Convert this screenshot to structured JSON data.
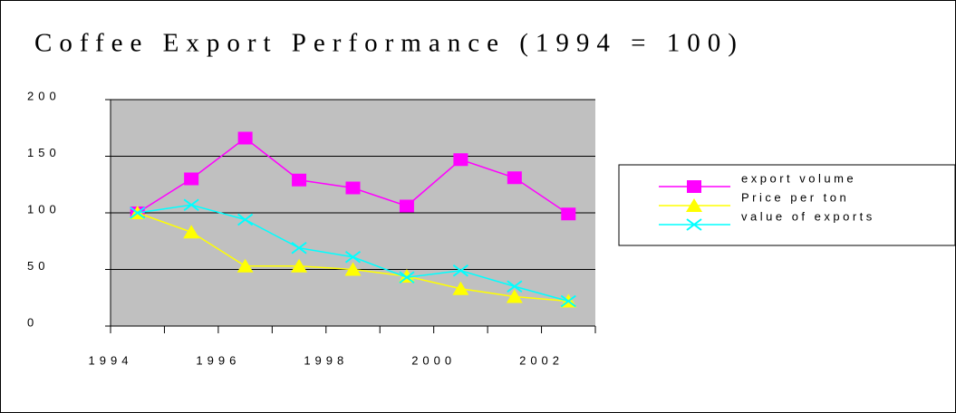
{
  "chart_data": {
    "type": "line",
    "title": "Coffee Export Performance (1994 = 100)",
    "categories": [
      "1994",
      null,
      "1996",
      null,
      "1998",
      null,
      "2000",
      null,
      "2002"
    ],
    "series": [
      {
        "name": "export volume",
        "color": "#ff00ff",
        "marker": "square",
        "values": [
          100,
          130,
          166,
          129,
          122,
          106,
          147,
          131,
          99
        ]
      },
      {
        "name": "Price per ton",
        "color": "#ffff00",
        "marker": "triangle",
        "values": [
          100,
          83,
          53,
          53,
          50,
          44,
          33,
          26,
          22
        ]
      },
      {
        "name": "value of exports",
        "color": "#00ffff",
        "marker": "x",
        "values": [
          100,
          107,
          94,
          69,
          61,
          43,
          49,
          35,
          22
        ]
      }
    ],
    "ylim": [
      0,
      200
    ],
    "yticks": [
      0,
      50,
      100,
      150,
      200
    ],
    "grid": true,
    "plot_background": "#c0c0c0",
    "legend": "right"
  }
}
